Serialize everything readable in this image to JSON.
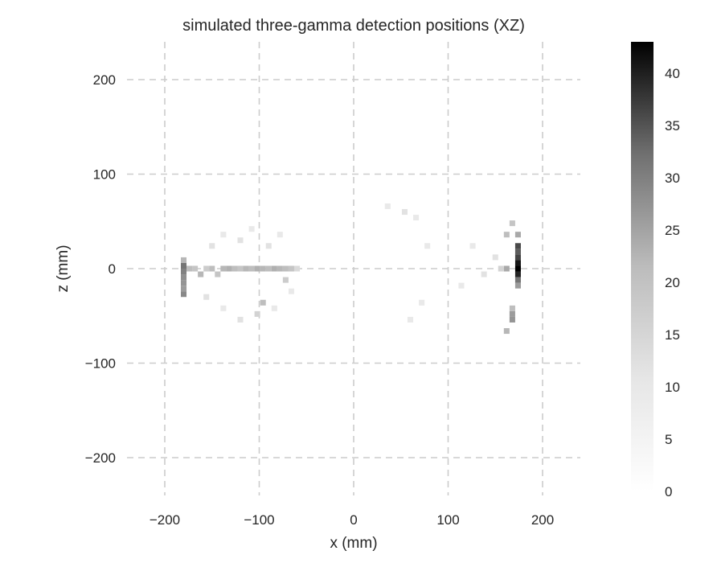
{
  "chart_data": {
    "type": "heatmap",
    "title": "simulated three-gamma detection positions (XZ)",
    "xlabel": "x (mm)",
    "ylabel": "z (mm)",
    "xlim": [
      -240,
      240
    ],
    "ylim": [
      -240,
      240
    ],
    "xticks": [
      -200,
      -100,
      0,
      100,
      200
    ],
    "yticks": [
      -200,
      -100,
      0,
      100,
      200
    ],
    "xtick_labels": [
      "−200",
      "−100",
      "0",
      "100",
      "200"
    ],
    "ytick_labels": [
      "−200",
      "−100",
      "0",
      "100",
      "200"
    ],
    "grid": true,
    "colormap": "Greys",
    "colorbar": {
      "min": 0,
      "max": 43,
      "ticks": [
        0,
        5,
        10,
        15,
        20,
        25,
        30,
        35,
        40
      ],
      "tick_labels": [
        "0",
        "5",
        "10",
        "15",
        "20",
        "25",
        "30",
        "35",
        "40"
      ]
    },
    "bin_size": [
      6,
      6
    ],
    "bins": [
      {
        "x": -180,
        "z": 3,
        "count": 20
      },
      {
        "x": -180,
        "z": -3,
        "count": 18
      },
      {
        "x": -180,
        "z": -9,
        "count": 16
      },
      {
        "x": -180,
        "z": -15,
        "count": 15
      },
      {
        "x": -180,
        "z": -21,
        "count": 14
      },
      {
        "x": -180,
        "z": -27,
        "count": 17
      },
      {
        "x": -180,
        "z": 9,
        "count": 10
      },
      {
        "x": -174,
        "z": 0,
        "count": 9
      },
      {
        "x": -168,
        "z": 0,
        "count": 8
      },
      {
        "x": -162,
        "z": -6,
        "count": 10
      },
      {
        "x": -156,
        "z": 0,
        "count": 7
      },
      {
        "x": -150,
        "z": 0,
        "count": 9
      },
      {
        "x": -144,
        "z": -6,
        "count": 8
      },
      {
        "x": -138,
        "z": 0,
        "count": 10
      },
      {
        "x": -132,
        "z": 0,
        "count": 11
      },
      {
        "x": -126,
        "z": 0,
        "count": 9
      },
      {
        "x": -120,
        "z": 0,
        "count": 8
      },
      {
        "x": -114,
        "z": 0,
        "count": 10
      },
      {
        "x": -108,
        "z": 0,
        "count": 9
      },
      {
        "x": -102,
        "z": 0,
        "count": 11
      },
      {
        "x": -96,
        "z": 0,
        "count": 10
      },
      {
        "x": -90,
        "z": 0,
        "count": 9
      },
      {
        "x": -84,
        "z": 0,
        "count": 11
      },
      {
        "x": -78,
        "z": 0,
        "count": 10
      },
      {
        "x": -72,
        "z": 0,
        "count": 9
      },
      {
        "x": -66,
        "z": 0,
        "count": 8
      },
      {
        "x": -60,
        "z": 0,
        "count": 5
      },
      {
        "x": -72,
        "z": -12,
        "count": 7
      },
      {
        "x": -96,
        "z": -36,
        "count": 9
      },
      {
        "x": -102,
        "z": -48,
        "count": 6
      },
      {
        "x": -150,
        "z": 24,
        "count": 4
      },
      {
        "x": -138,
        "z": 36,
        "count": 3
      },
      {
        "x": -120,
        "z": 30,
        "count": 4
      },
      {
        "x": -108,
        "z": 42,
        "count": 3
      },
      {
        "x": -90,
        "z": 24,
        "count": 4
      },
      {
        "x": -78,
        "z": 36,
        "count": 3
      },
      {
        "x": -156,
        "z": -30,
        "count": 4
      },
      {
        "x": -138,
        "z": -42,
        "count": 3
      },
      {
        "x": -120,
        "z": -54,
        "count": 4
      },
      {
        "x": -84,
        "z": -42,
        "count": 3
      },
      {
        "x": -66,
        "z": -24,
        "count": 3
      },
      {
        "x": 36,
        "z": 66,
        "count": 3
      },
      {
        "x": 54,
        "z": 60,
        "count": 4
      },
      {
        "x": 66,
        "z": 54,
        "count": 3
      },
      {
        "x": 78,
        "z": 24,
        "count": 3
      },
      {
        "x": 72,
        "z": -36,
        "count": 3
      },
      {
        "x": 60,
        "z": -54,
        "count": 3
      },
      {
        "x": 174,
        "z": 0,
        "count": 43
      },
      {
        "x": 174,
        "z": 6,
        "count": 37
      },
      {
        "x": 174,
        "z": -6,
        "count": 34
      },
      {
        "x": 174,
        "z": 12,
        "count": 28
      },
      {
        "x": 174,
        "z": 18,
        "count": 24
      },
      {
        "x": 174,
        "z": 24,
        "count": 27
      },
      {
        "x": 174,
        "z": -12,
        "count": 20
      },
      {
        "x": 174,
        "z": -18,
        "count": 14
      },
      {
        "x": 174,
        "z": 36,
        "count": 12
      },
      {
        "x": 168,
        "z": -54,
        "count": 15
      },
      {
        "x": 168,
        "z": -48,
        "count": 14
      },
      {
        "x": 168,
        "z": -42,
        "count": 9
      },
      {
        "x": 168,
        "z": 48,
        "count": 8
      },
      {
        "x": 162,
        "z": 0,
        "count": 12
      },
      {
        "x": 162,
        "z": 36,
        "count": 9
      },
      {
        "x": 162,
        "z": -66,
        "count": 10
      },
      {
        "x": 156,
        "z": 0,
        "count": 6
      },
      {
        "x": 150,
        "z": 12,
        "count": 4
      },
      {
        "x": 138,
        "z": -6,
        "count": 4
      },
      {
        "x": 126,
        "z": 24,
        "count": 3
      },
      {
        "x": 114,
        "z": -18,
        "count": 3
      }
    ]
  }
}
